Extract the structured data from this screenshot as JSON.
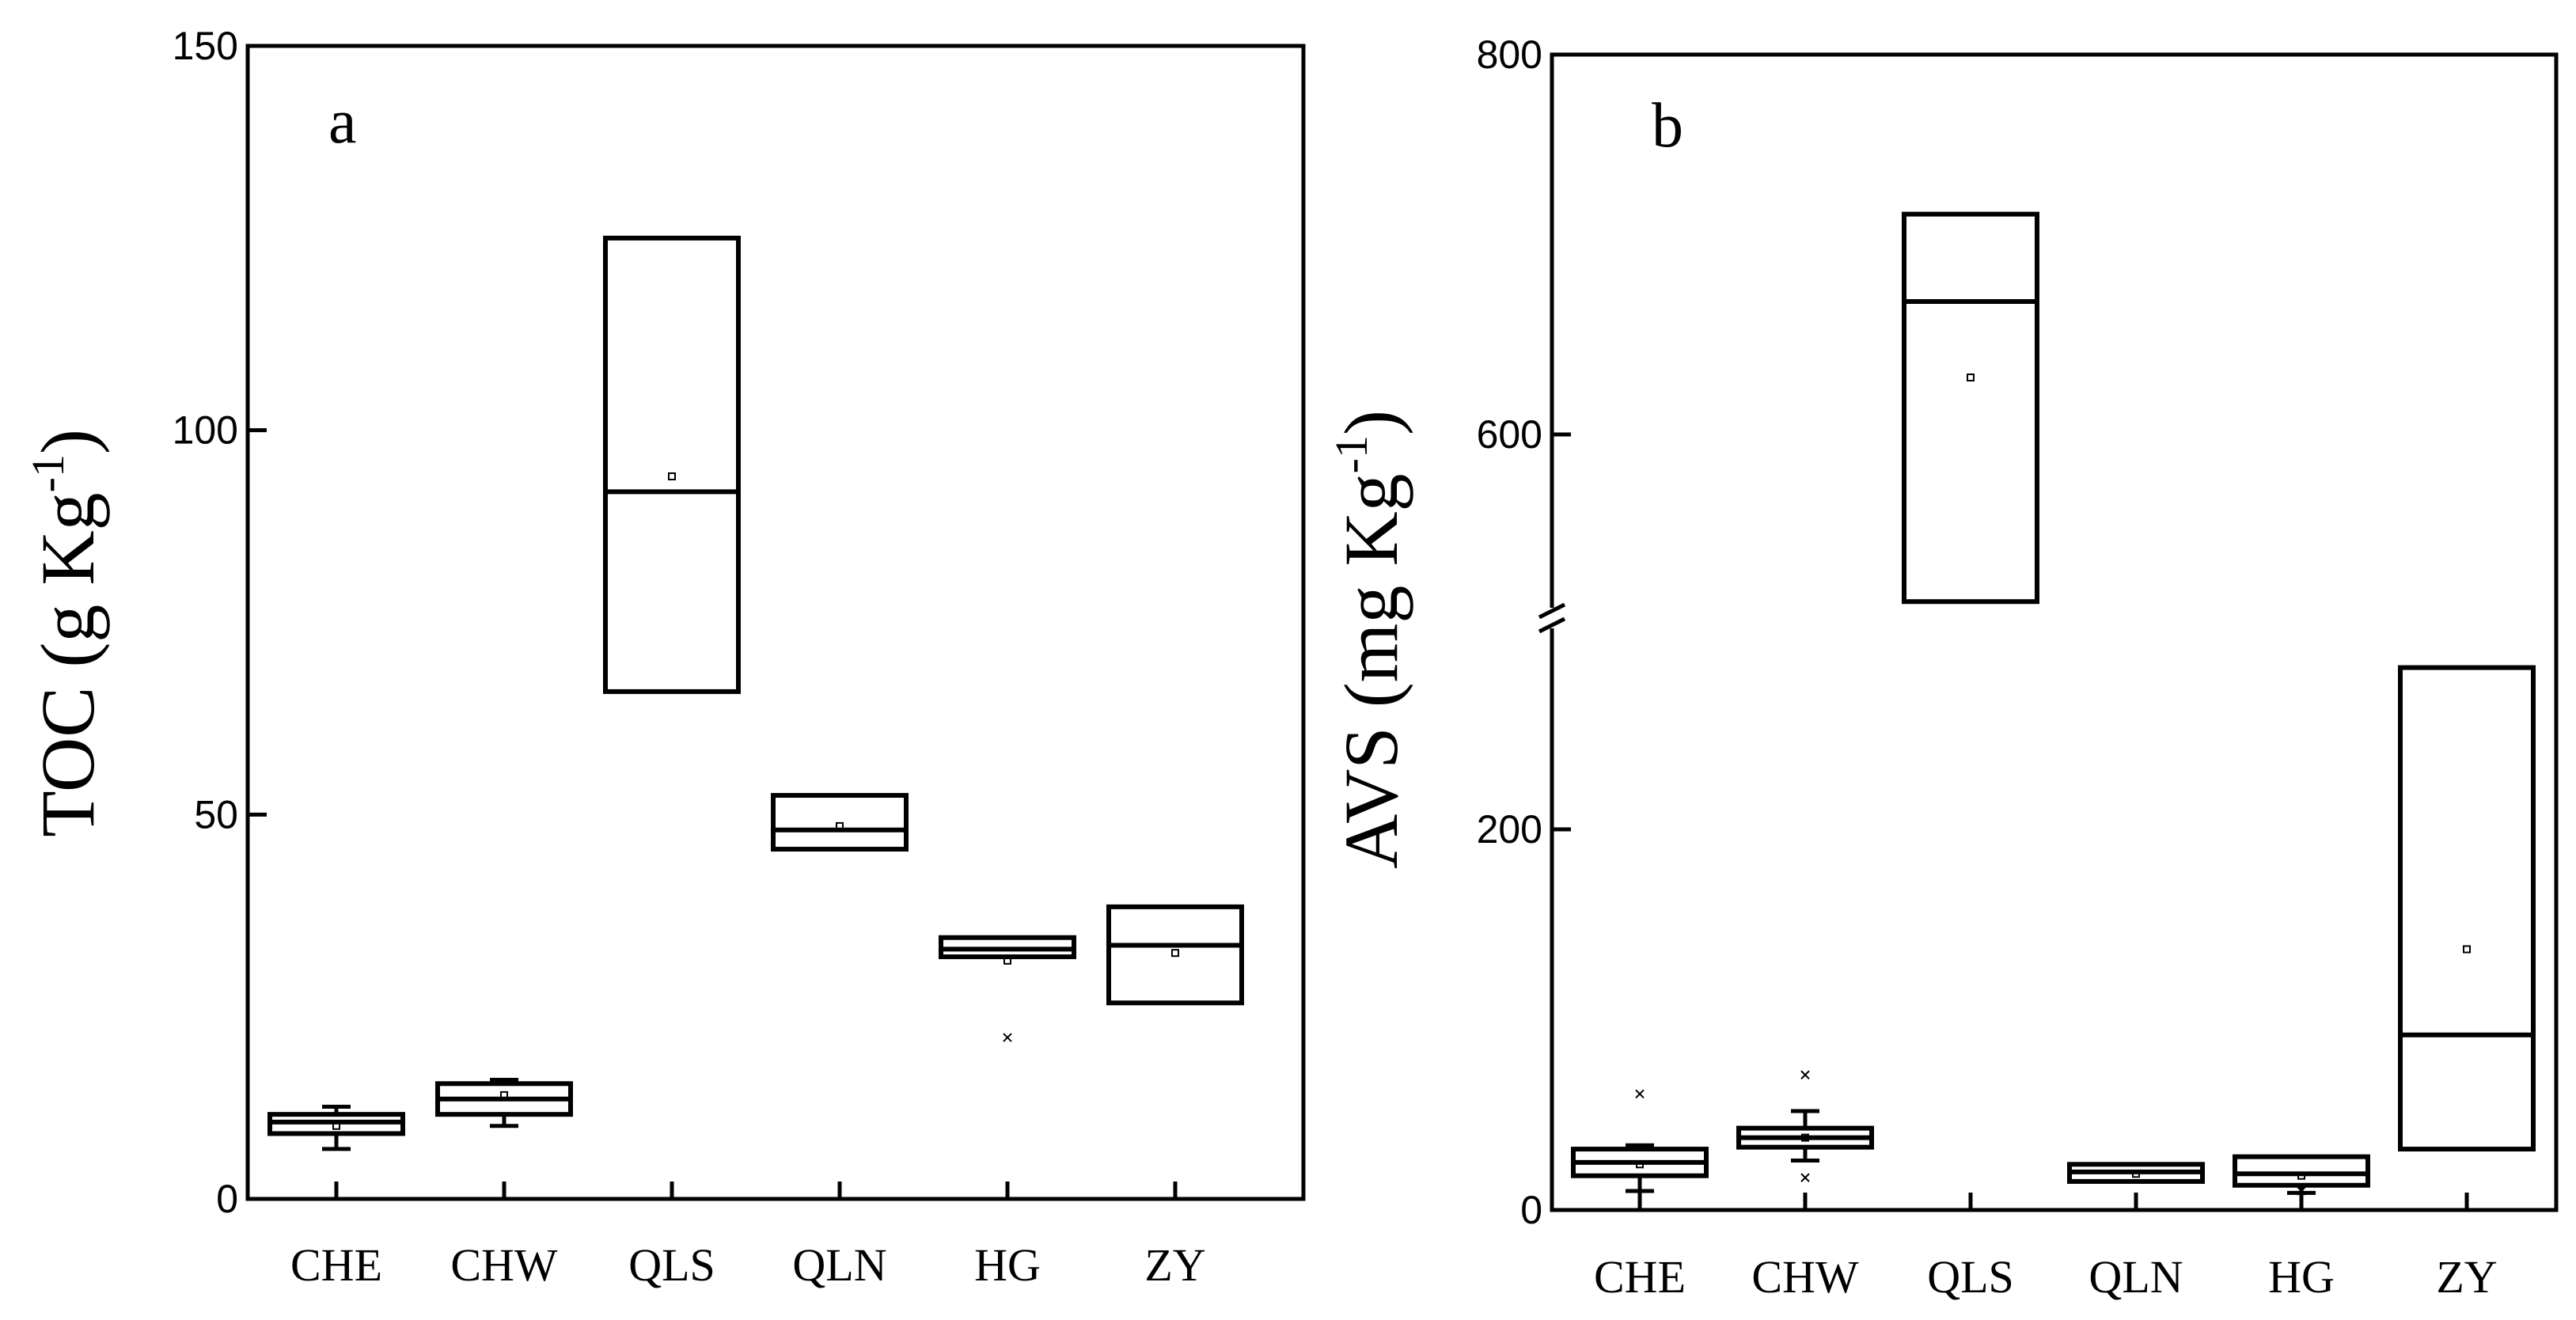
{
  "chart_data": [
    {
      "type": "box",
      "panel_label": "a",
      "ylabel": {
        "main": "TOC (g Kg",
        "sup": "-1",
        "close": ")"
      },
      "ylim": [
        0,
        150
      ],
      "yticks": [
        0,
        50,
        100,
        150
      ],
      "categories": [
        "CHE",
        "CHW",
        "QLS",
        "QLN",
        "HG",
        "ZY"
      ],
      "boxes": [
        {
          "q1": 8.5,
          "median": 10,
          "q3": 11,
          "whisker_low": 6.5,
          "whisker_high": 12,
          "mean": 9.5,
          "outliers": []
        },
        {
          "q1": 11,
          "median": 13,
          "q3": 15,
          "whisker_low": 9.5,
          "whisker_high": 15.5,
          "mean": 13.5,
          "outliers": []
        },
        {
          "q1": 66,
          "median": 92,
          "q3": 125,
          "whisker_low": 66,
          "whisker_high": 125,
          "mean": 94,
          "outliers": []
        },
        {
          "q1": 45.5,
          "median": 48,
          "q3": 52.5,
          "whisker_low": 45.5,
          "whisker_high": 52.5,
          "mean": 48.5,
          "outliers": []
        },
        {
          "q1": 31.5,
          "median": 32.5,
          "q3": 34,
          "whisker_low": 31.5,
          "whisker_high": 34,
          "mean": 31,
          "outliers": [
            21
          ]
        },
        {
          "q1": 25.5,
          "median": 33,
          "q3": 38,
          "whisker_low": 25.5,
          "whisker_high": 38,
          "mean": 32,
          "outliers": []
        }
      ]
    },
    {
      "type": "box",
      "panel_label": "b",
      "ylabel": {
        "main": "AVS (mg Kg",
        "sup": "-1",
        "close": ")"
      },
      "broken_axis": true,
      "lower_segment": [
        0,
        300
      ],
      "upper_segment": [
        500,
        800
      ],
      "yticks": [
        0,
        200,
        600,
        800
      ],
      "categories": [
        "CHE",
        "CHW",
        "QLS",
        "QLN",
        "HG",
        "ZY"
      ],
      "boxes": [
        {
          "q1": 18,
          "median": 25,
          "q3": 32,
          "whisker_low": 10,
          "whisker_high": 34,
          "mean": 24,
          "outliers": [
            61
          ]
        },
        {
          "q1": 33,
          "median": 38,
          "q3": 43,
          "whisker_low": 26,
          "whisker_high": 52,
          "mean": 38,
          "outliers": [
            17,
            71
          ]
        },
        {
          "q1": 512,
          "median": 670,
          "q3": 716,
          "whisker_low": 512,
          "whisker_high": 716,
          "mean": 630,
          "outliers": []
        },
        {
          "q1": 15,
          "median": 20,
          "q3": 24,
          "whisker_low": 15,
          "whisker_high": 24,
          "mean": 19,
          "outliers": []
        },
        {
          "q1": 13,
          "median": 19,
          "q3": 28,
          "whisker_low": 9,
          "whisker_high": 28,
          "mean": 18,
          "outliers": [
            10
          ]
        },
        {
          "q1": 32,
          "median": 92,
          "q3": 285,
          "whisker_low": 32,
          "whisker_high": 285,
          "mean": 137,
          "outliers": []
        }
      ]
    }
  ]
}
